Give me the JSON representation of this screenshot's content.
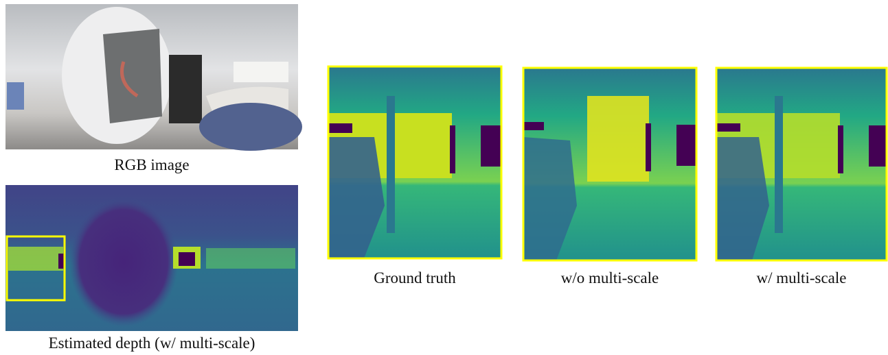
{
  "figure": {
    "panels": [
      {
        "caption": "RGB image"
      },
      {
        "caption": "Estimated depth (w/ multi-scale)"
      },
      {
        "caption": "Ground truth"
      },
      {
        "caption": "w/o multi-scale"
      },
      {
        "caption": "w/ multi-scale"
      }
    ]
  }
}
